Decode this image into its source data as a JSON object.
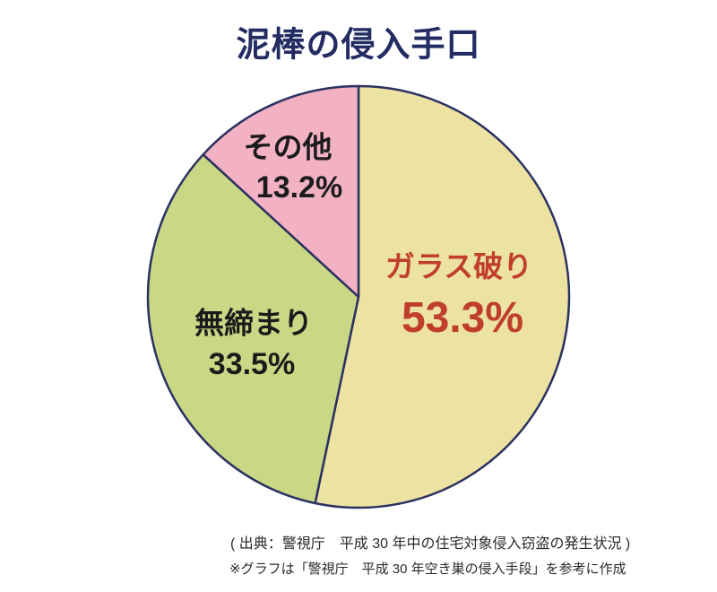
{
  "title": "泥棒の侵入手口",
  "colors": {
    "title": "#232c63",
    "stroke": "#2b3160",
    "highlight_red": "#c03e2c",
    "text_black": "#1b1b1b",
    "background": "#ffffff"
  },
  "chart_data": {
    "type": "pie",
    "title": "泥棒の侵入手口",
    "direction": "clockwise",
    "start_angle_deg": 0,
    "total": 100,
    "legend_position": "none",
    "slices": [
      {
        "id": "glass-breaking",
        "label": "ガラス破り",
        "value": 53.3,
        "display_value": "53.3%",
        "color": "#ece2a2",
        "label_color": "#c03e2c"
      },
      {
        "id": "unlocked",
        "label": "無締まり",
        "value": 33.5,
        "display_value": "33.5%",
        "color": "#cad885",
        "label_color": "#1b1b1b"
      },
      {
        "id": "other",
        "label": "その他",
        "value": 13.2,
        "display_value": "13.2%",
        "color": "#f2b2c4",
        "label_color": "#1b1b1b"
      }
    ]
  },
  "source": {
    "line1": "( 出典：警視庁　平成 30 年中の住宅対象侵入窃盗の発生状況 )",
    "line2": "※グラフは「警視庁　平成 30 年空き巣の侵入手段」を参考に作成"
  }
}
